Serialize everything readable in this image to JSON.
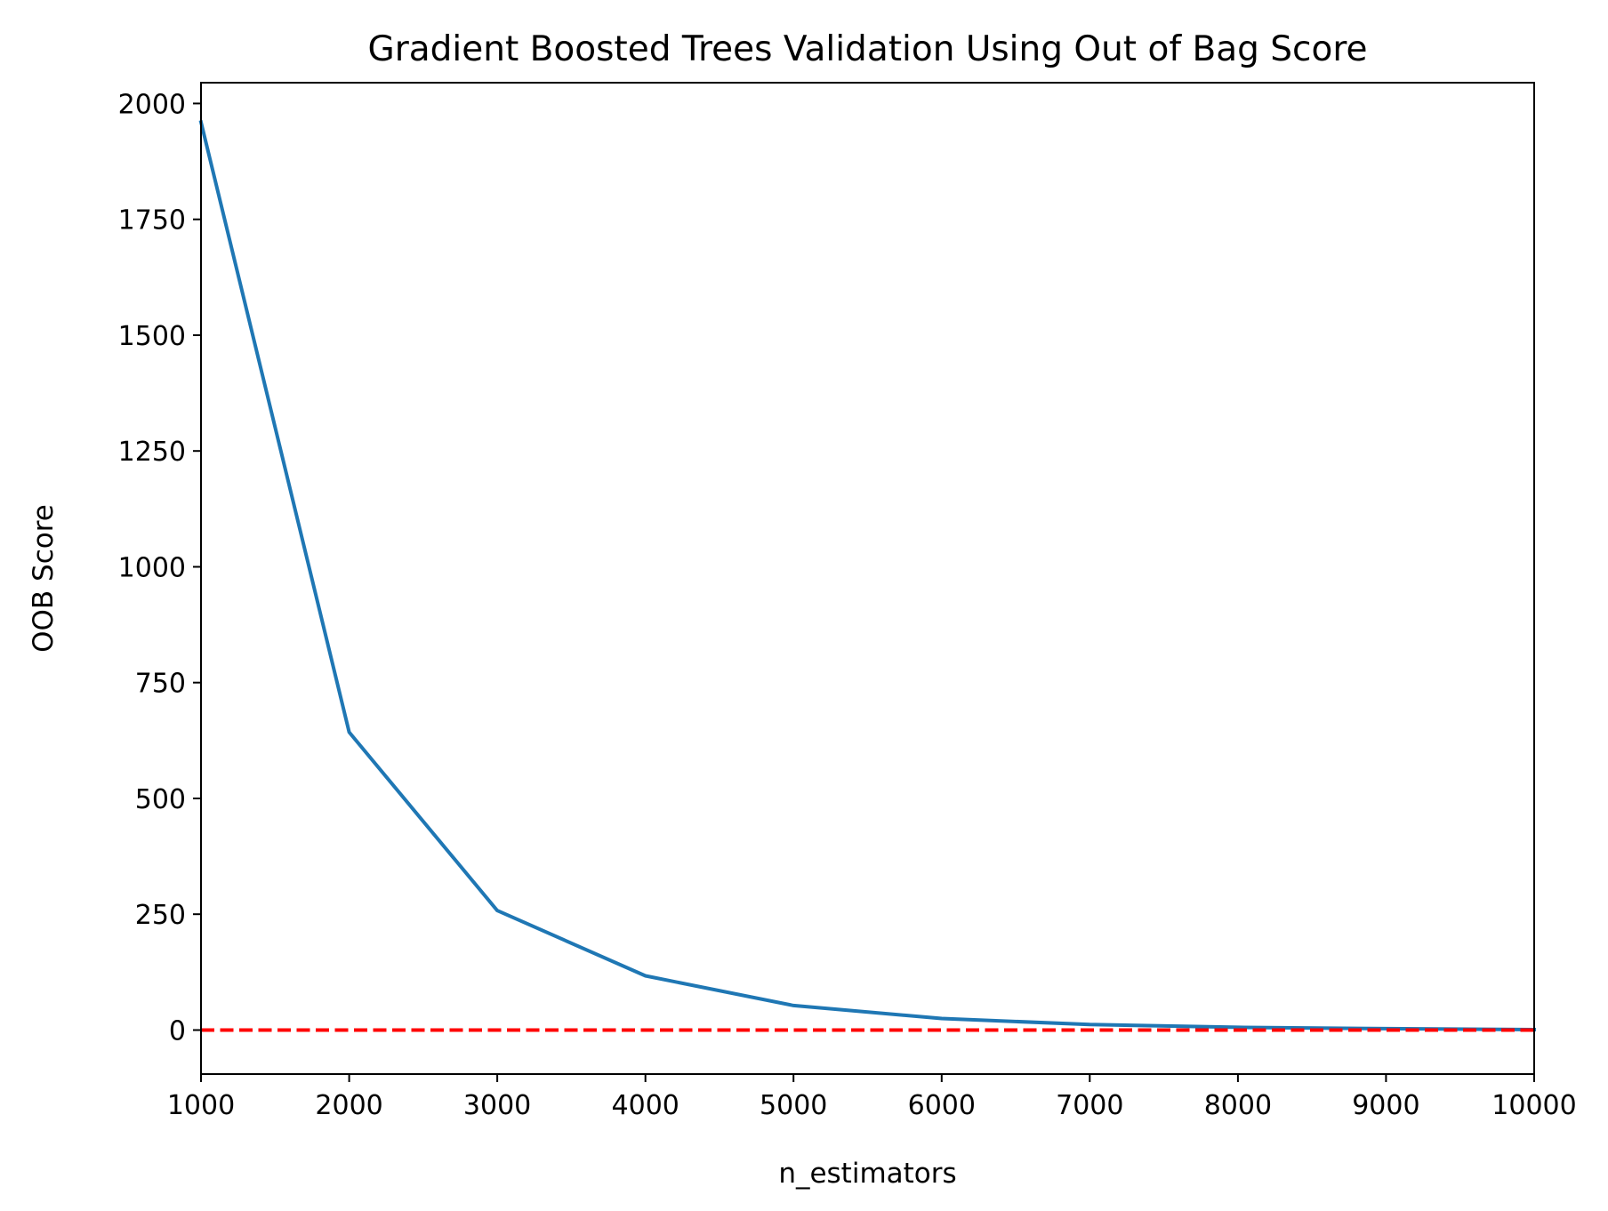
{
  "chart_data": {
    "type": "line",
    "title": "Gradient Boosted Trees Validation Using Out of Bag Score",
    "xlabel": "n_estimators",
    "ylabel": "OOB Score",
    "xlim": [
      1000,
      10000
    ],
    "ylim": [
      -95,
      2045
    ],
    "xticks": [
      1000,
      2000,
      3000,
      4000,
      5000,
      6000,
      7000,
      8000,
      9000,
      10000
    ],
    "yticks": [
      0,
      250,
      500,
      750,
      1000,
      1250,
      1500,
      1750,
      2000
    ],
    "grid": false,
    "series": [
      {
        "color": "#1f77b4",
        "style": "solid",
        "x": [
          1000,
          2000,
          3000,
          4000,
          5000,
          6000,
          7000,
          8000,
          9000,
          10000
        ],
        "values": [
          1960,
          643,
          258,
          117,
          53,
          25,
          12,
          6,
          3,
          1
        ]
      }
    ],
    "reference_lines": [
      {
        "orientation": "horizontal",
        "y": 0,
        "color": "#ff0000",
        "style": "dashed"
      }
    ]
  }
}
